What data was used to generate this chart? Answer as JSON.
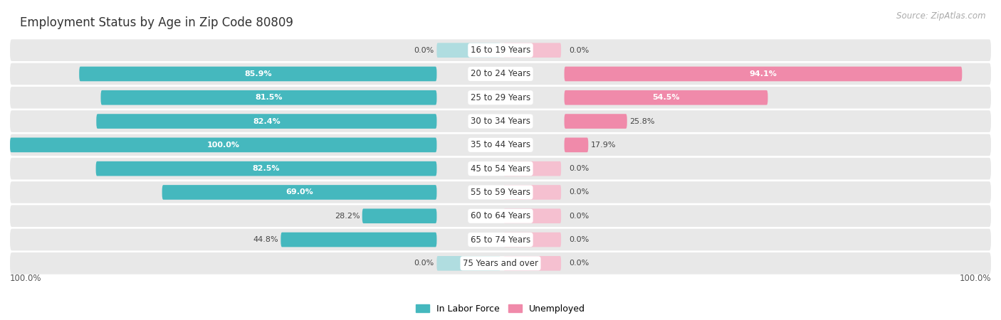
{
  "title": "Employment Status by Age in Zip Code 80809",
  "source": "Source: ZipAtlas.com",
  "categories": [
    "16 to 19 Years",
    "20 to 24 Years",
    "25 to 29 Years",
    "30 to 34 Years",
    "35 to 44 Years",
    "45 to 54 Years",
    "55 to 59 Years",
    "60 to 64 Years",
    "65 to 74 Years",
    "75 Years and over"
  ],
  "in_labor_force": [
    0.0,
    85.9,
    81.5,
    82.4,
    100.0,
    82.5,
    69.0,
    28.2,
    44.8,
    0.0
  ],
  "unemployed": [
    0.0,
    94.1,
    54.5,
    25.8,
    17.9,
    0.0,
    0.0,
    0.0,
    0.0,
    0.0
  ],
  "labor_force_color": "#45b8be",
  "unemployed_color": "#f08aaa",
  "row_bg_color": "#e8e8e8",
  "title_fontsize": 12,
  "source_fontsize": 8.5,
  "label_fontsize": 8,
  "category_fontsize": 8.5,
  "max_value": 100.0,
  "x_left_label": "100.0%",
  "x_right_label": "100.0%",
  "legend_items": [
    "In Labor Force",
    "Unemployed"
  ]
}
